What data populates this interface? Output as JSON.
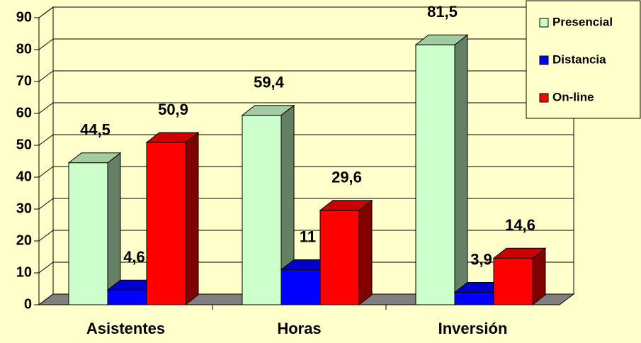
{
  "chart_data": {
    "type": "bar3d",
    "categories": [
      "Asistentes",
      "Horas",
      "Inversión"
    ],
    "series": [
      {
        "name": "Presencial",
        "color": "#ccffcc",
        "values": [
          44.5,
          59.4,
          81.5
        ],
        "value_labels": [
          "44,5",
          "59,4",
          "81,5"
        ]
      },
      {
        "name": "Distancia",
        "color": "#0000ff",
        "values": [
          4.6,
          11,
          3.9
        ],
        "value_labels": [
          "4,6",
          "11",
          "3,9"
        ]
      },
      {
        "name": "On-line",
        "color": "#ff0000",
        "values": [
          50.9,
          29.6,
          14.6
        ],
        "value_labels": [
          "50,9",
          "29,6",
          "14,6"
        ]
      }
    ],
    "ylim": [
      0,
      90
    ],
    "yticks": [
      0,
      10,
      20,
      30,
      40,
      50,
      60,
      70,
      80,
      90
    ],
    "grid": true,
    "legend": "top-right"
  }
}
